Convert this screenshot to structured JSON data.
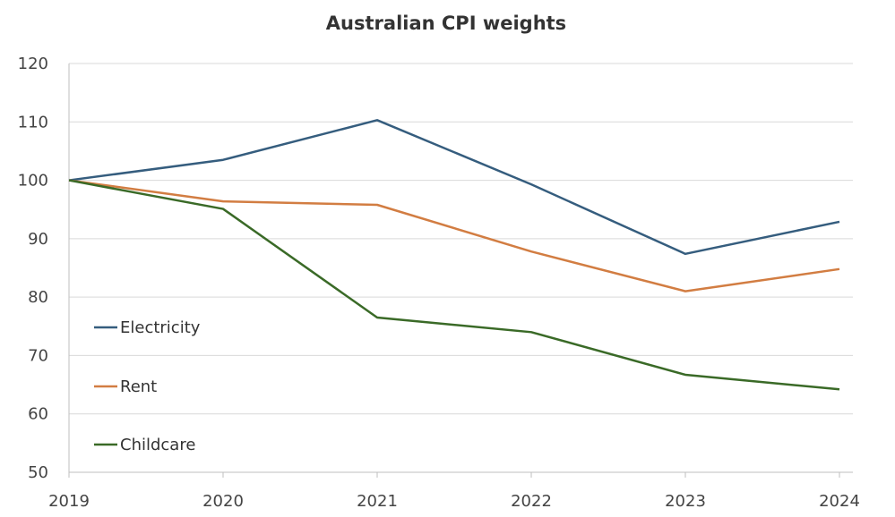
{
  "chart_data": {
    "type": "line",
    "title": "Australian CPI weights",
    "xlabel": "",
    "ylabel": "",
    "x": [
      "2019",
      "2020",
      "2021",
      "2022",
      "2023",
      "2024"
    ],
    "ylim": [
      50,
      120
    ],
    "yticks": [
      50,
      60,
      70,
      80,
      90,
      100,
      110,
      120
    ],
    "grid": true,
    "legend": "left, inside plot",
    "series": [
      {
        "name": "Electricity",
        "color": "#355d7e",
        "values": [
          100,
          103.5,
          110.3,
          99.3,
          87.4,
          92.9
        ]
      },
      {
        "name": "Rent",
        "color": "#d27d42",
        "values": [
          100,
          96.4,
          95.8,
          87.8,
          81.0,
          84.8
        ]
      },
      {
        "name": "Childcare",
        "color": "#3a6a27",
        "values": [
          100,
          95.1,
          76.5,
          74.0,
          66.7,
          64.2
        ]
      }
    ]
  }
}
